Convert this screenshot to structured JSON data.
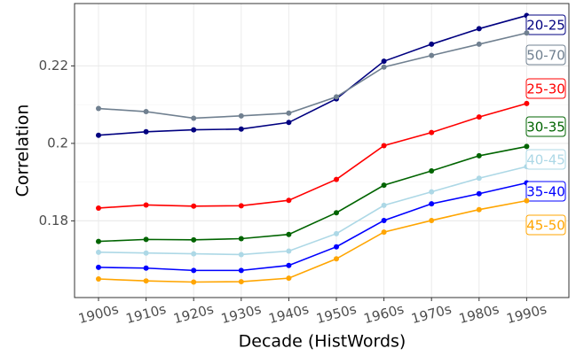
{
  "chart_data": {
    "type": "line",
    "x_label": "Decade (HistWords)",
    "y_label": "Correlation",
    "categories": [
      "1900s",
      "1910s",
      "1920s",
      "1930s",
      "1940s",
      "1950s",
      "1960s",
      "1970s",
      "1980s",
      "1990s"
    ],
    "series": [
      {
        "name": "20-25",
        "color": "#000080",
        "values": [
          0.2021,
          0.203,
          0.2035,
          0.2037,
          0.2054,
          0.2115,
          0.2212,
          0.2256,
          0.2296,
          0.233
        ]
      },
      {
        "name": "50-70",
        "color": "#708090",
        "values": [
          0.209,
          0.2082,
          0.2065,
          0.2071,
          0.2078,
          0.212,
          0.2197,
          0.2227,
          0.2256,
          0.2285
        ]
      },
      {
        "name": "25-30",
        "color": "#ff0000",
        "values": [
          0.1833,
          0.1841,
          0.1838,
          0.1839,
          0.1853,
          0.1907,
          0.1994,
          0.2028,
          0.2068,
          0.2103
        ]
      },
      {
        "name": "30-35",
        "color": "#006400",
        "values": [
          0.1747,
          0.1752,
          0.1751,
          0.1754,
          0.1765,
          0.1821,
          0.1892,
          0.1929,
          0.1968,
          0.1992
        ]
      },
      {
        "name": "40-45",
        "color": "#add8e6",
        "values": [
          0.1719,
          0.1717,
          0.1715,
          0.1713,
          0.1722,
          0.1767,
          0.184,
          0.1875,
          0.191,
          0.194
        ]
      },
      {
        "name": "35-40",
        "color": "#0000ff",
        "values": [
          0.168,
          0.1678,
          0.1672,
          0.1672,
          0.1685,
          0.1733,
          0.1801,
          0.1844,
          0.187,
          0.1898
        ]
      },
      {
        "name": "45-50",
        "color": "#ffa500",
        "values": [
          0.165,
          0.1645,
          0.1642,
          0.1643,
          0.1652,
          0.1702,
          0.1771,
          0.1801,
          0.1829,
          0.1852
        ]
      }
    ],
    "ylim": [
      0.1602,
      0.2361
    ],
    "yticks": [
      0.18,
      0.2,
      0.22
    ],
    "grid": true
  }
}
